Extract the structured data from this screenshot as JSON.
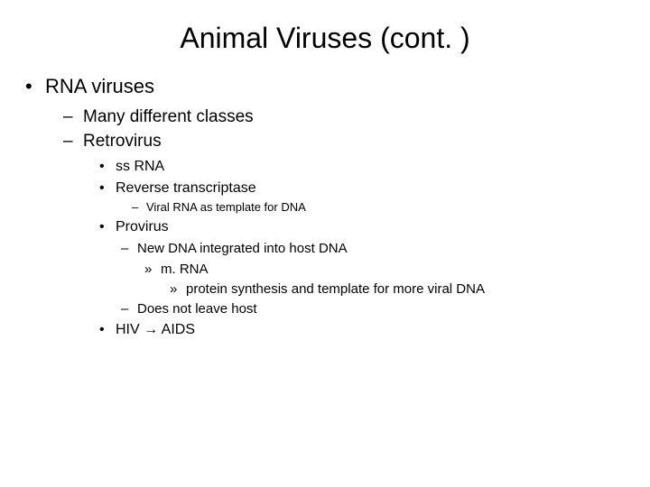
{
  "background_color": "#ffffff",
  "text_color": "#000000",
  "font_family": "Arial",
  "title": {
    "text": "Animal Viruses (cont. )",
    "fontsize": 32
  },
  "bullets": {
    "l0_0": "RNA viruses",
    "l1_0": "Many different classes",
    "l1_1": "Retrovirus",
    "l2_0": "ss RNA",
    "l2_1": "Reverse transcriptase",
    "l3_0": "Viral RNA as template for DNA",
    "l2_2": "Provirus",
    "l3b_0": "New DNA integrated into host DNA",
    "l4_0": "m. RNA",
    "l5_0": "protein synthesis and template for more viral DNA",
    "l3b_1": "Does not leave host",
    "l2_3": "HIV → AIDS"
  }
}
